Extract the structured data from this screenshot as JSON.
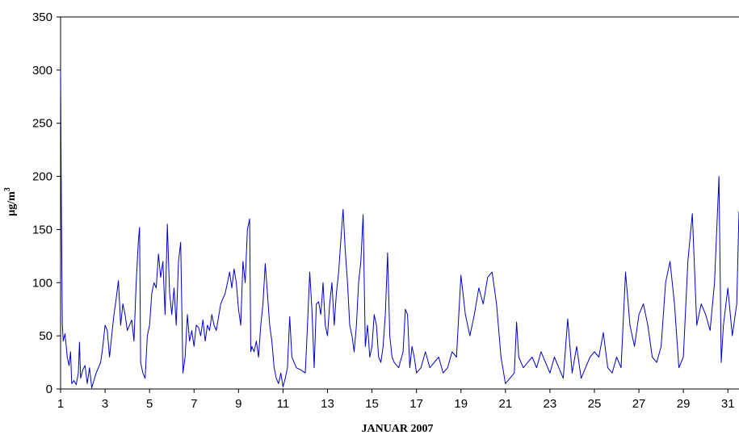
{
  "chart_data": {
    "type": "line",
    "title": "",
    "xlabel": "JANUAR 2007",
    "ylabel": "µg/m³",
    "ylabel_base": "µg/m",
    "ylabel_sup": "3",
    "xlim": [
      1,
      31.5
    ],
    "ylim": [
      0,
      350
    ],
    "x_ticks": [
      1,
      3,
      5,
      7,
      9,
      11,
      13,
      15,
      17,
      19,
      21,
      23,
      25,
      27,
      29,
      31
    ],
    "y_ticks": [
      0,
      50,
      100,
      150,
      200,
      250,
      300,
      350
    ],
    "grid": false,
    "legend": "none",
    "line_color": "#0000cc",
    "series": [
      {
        "values": [
          [
            1.0,
            300
          ],
          [
            1.04,
            160
          ],
          [
            1.08,
            60
          ],
          [
            1.12,
            45
          ],
          [
            1.2,
            52
          ],
          [
            1.3,
            30
          ],
          [
            1.38,
            22
          ],
          [
            1.45,
            35
          ],
          [
            1.5,
            5
          ],
          [
            1.6,
            8
          ],
          [
            1.7,
            4
          ],
          [
            1.8,
            15
          ],
          [
            1.85,
            44
          ],
          [
            1.9,
            10
          ],
          [
            2.0,
            18
          ],
          [
            2.1,
            22
          ],
          [
            2.2,
            5
          ],
          [
            2.3,
            20
          ],
          [
            2.4,
            1
          ],
          [
            2.5,
            8
          ],
          [
            2.6,
            15
          ],
          [
            2.7,
            20
          ],
          [
            2.8,
            25
          ],
          [
            2.9,
            40
          ],
          [
            3.0,
            60
          ],
          [
            3.1,
            55
          ],
          [
            3.2,
            30
          ],
          [
            3.3,
            50
          ],
          [
            3.4,
            70
          ],
          [
            3.5,
            85
          ],
          [
            3.6,
            102
          ],
          [
            3.7,
            60
          ],
          [
            3.8,
            80
          ],
          [
            3.9,
            70
          ],
          [
            4.0,
            55
          ],
          [
            4.2,
            65
          ],
          [
            4.3,
            45
          ],
          [
            4.4,
            100
          ],
          [
            4.5,
            140
          ],
          [
            4.55,
            152
          ],
          [
            4.6,
            25
          ],
          [
            4.7,
            15
          ],
          [
            4.8,
            10
          ],
          [
            4.9,
            50
          ],
          [
            5.0,
            60
          ],
          [
            5.1,
            90
          ],
          [
            5.2,
            100
          ],
          [
            5.3,
            95
          ],
          [
            5.4,
            127
          ],
          [
            5.5,
            105
          ],
          [
            5.6,
            120
          ],
          [
            5.7,
            70
          ],
          [
            5.8,
            155
          ],
          [
            5.9,
            90
          ],
          [
            6.0,
            70
          ],
          [
            6.1,
            95
          ],
          [
            6.2,
            60
          ],
          [
            6.3,
            120
          ],
          [
            6.4,
            138
          ],
          [
            6.5,
            15
          ],
          [
            6.6,
            30
          ],
          [
            6.7,
            70
          ],
          [
            6.8,
            45
          ],
          [
            6.9,
            55
          ],
          [
            7.0,
            40
          ],
          [
            7.1,
            60
          ],
          [
            7.2,
            58
          ],
          [
            7.3,
            50
          ],
          [
            7.4,
            65
          ],
          [
            7.5,
            45
          ],
          [
            7.6,
            60
          ],
          [
            7.7,
            55
          ],
          [
            7.8,
            70
          ],
          [
            7.9,
            60
          ],
          [
            8.0,
            55
          ],
          [
            8.2,
            80
          ],
          [
            8.4,
            90
          ],
          [
            8.5,
            100
          ],
          [
            8.6,
            110
          ],
          [
            8.7,
            95
          ],
          [
            8.8,
            113
          ],
          [
            8.9,
            100
          ],
          [
            9.0,
            75
          ],
          [
            9.1,
            60
          ],
          [
            9.2,
            120
          ],
          [
            9.3,
            100
          ],
          [
            9.4,
            150
          ],
          [
            9.5,
            160
          ],
          [
            9.55,
            35
          ],
          [
            9.6,
            40
          ],
          [
            9.7,
            35
          ],
          [
            9.8,
            45
          ],
          [
            9.9,
            30
          ],
          [
            10.0,
            60
          ],
          [
            10.1,
            80
          ],
          [
            10.2,
            118
          ],
          [
            10.3,
            90
          ],
          [
            10.4,
            60
          ],
          [
            10.5,
            45
          ],
          [
            10.6,
            20
          ],
          [
            10.7,
            10
          ],
          [
            10.8,
            5
          ],
          [
            10.9,
            15
          ],
          [
            11.0,
            2
          ],
          [
            11.1,
            10
          ],
          [
            11.2,
            20
          ],
          [
            11.3,
            68
          ],
          [
            11.4,
            30
          ],
          [
            11.5,
            25
          ],
          [
            11.6,
            20
          ],
          [
            11.8,
            18
          ],
          [
            12.0,
            15
          ],
          [
            12.1,
            60
          ],
          [
            12.2,
            110
          ],
          [
            12.3,
            75
          ],
          [
            12.4,
            20
          ],
          [
            12.5,
            80
          ],
          [
            12.6,
            82
          ],
          [
            12.7,
            70
          ],
          [
            12.8,
            100
          ],
          [
            12.9,
            60
          ],
          [
            13.0,
            50
          ],
          [
            13.1,
            80
          ],
          [
            13.2,
            100
          ],
          [
            13.3,
            60
          ],
          [
            13.4,
            90
          ],
          [
            13.5,
            110
          ],
          [
            13.6,
            140
          ],
          [
            13.7,
            169
          ],
          [
            13.8,
            130
          ],
          [
            13.9,
            100
          ],
          [
            14.0,
            60
          ],
          [
            14.1,
            50
          ],
          [
            14.2,
            35
          ],
          [
            14.3,
            60
          ],
          [
            14.4,
            100
          ],
          [
            14.5,
            120
          ],
          [
            14.6,
            164
          ],
          [
            14.7,
            40
          ],
          [
            14.8,
            60
          ],
          [
            14.9,
            30
          ],
          [
            15.0,
            40
          ],
          [
            15.1,
            70
          ],
          [
            15.2,
            60
          ],
          [
            15.3,
            30
          ],
          [
            15.4,
            25
          ],
          [
            15.5,
            40
          ],
          [
            15.6,
            70
          ],
          [
            15.7,
            128
          ],
          [
            15.8,
            50
          ],
          [
            15.9,
            30
          ],
          [
            16.0,
            25
          ],
          [
            16.2,
            20
          ],
          [
            16.4,
            35
          ],
          [
            16.5,
            75
          ],
          [
            16.6,
            70
          ],
          [
            16.7,
            20
          ],
          [
            16.8,
            40
          ],
          [
            16.9,
            30
          ],
          [
            17.0,
            15
          ],
          [
            17.2,
            20
          ],
          [
            17.4,
            35
          ],
          [
            17.6,
            20
          ],
          [
            17.8,
            25
          ],
          [
            18.0,
            30
          ],
          [
            18.2,
            15
          ],
          [
            18.4,
            20
          ],
          [
            18.6,
            35
          ],
          [
            18.8,
            30
          ],
          [
            19.0,
            107
          ],
          [
            19.2,
            70
          ],
          [
            19.4,
            50
          ],
          [
            19.6,
            70
          ],
          [
            19.8,
            95
          ],
          [
            20.0,
            80
          ],
          [
            20.2,
            105
          ],
          [
            20.4,
            110
          ],
          [
            20.6,
            80
          ],
          [
            20.8,
            30
          ],
          [
            21.0,
            5
          ],
          [
            21.2,
            10
          ],
          [
            21.4,
            15
          ],
          [
            21.5,
            63
          ],
          [
            21.6,
            30
          ],
          [
            21.8,
            20
          ],
          [
            22.0,
            25
          ],
          [
            22.2,
            30
          ],
          [
            22.4,
            20
          ],
          [
            22.6,
            35
          ],
          [
            22.8,
            25
          ],
          [
            23.0,
            15
          ],
          [
            23.2,
            30
          ],
          [
            23.4,
            20
          ],
          [
            23.6,
            10
          ],
          [
            23.8,
            66
          ],
          [
            24.0,
            15
          ],
          [
            24.2,
            40
          ],
          [
            24.4,
            10
          ],
          [
            24.6,
            20
          ],
          [
            24.8,
            30
          ],
          [
            25.0,
            35
          ],
          [
            25.2,
            30
          ],
          [
            25.4,
            53
          ],
          [
            25.6,
            20
          ],
          [
            25.8,
            15
          ],
          [
            26.0,
            30
          ],
          [
            26.2,
            20
          ],
          [
            26.4,
            110
          ],
          [
            26.6,
            60
          ],
          [
            26.8,
            40
          ],
          [
            27.0,
            70
          ],
          [
            27.2,
            80
          ],
          [
            27.4,
            60
          ],
          [
            27.6,
            30
          ],
          [
            27.8,
            25
          ],
          [
            28.0,
            40
          ],
          [
            28.2,
            100
          ],
          [
            28.4,
            120
          ],
          [
            28.6,
            80
          ],
          [
            28.8,
            20
          ],
          [
            29.0,
            30
          ],
          [
            29.2,
            120
          ],
          [
            29.4,
            165
          ],
          [
            29.6,
            60
          ],
          [
            29.8,
            80
          ],
          [
            30.0,
            70
          ],
          [
            30.2,
            55
          ],
          [
            30.4,
            100
          ],
          [
            30.6,
            200
          ],
          [
            30.7,
            25
          ],
          [
            30.8,
            60
          ],
          [
            31.0,
            95
          ],
          [
            31.2,
            50
          ],
          [
            31.4,
            80
          ],
          [
            31.5,
            167
          ]
        ]
      }
    ]
  }
}
